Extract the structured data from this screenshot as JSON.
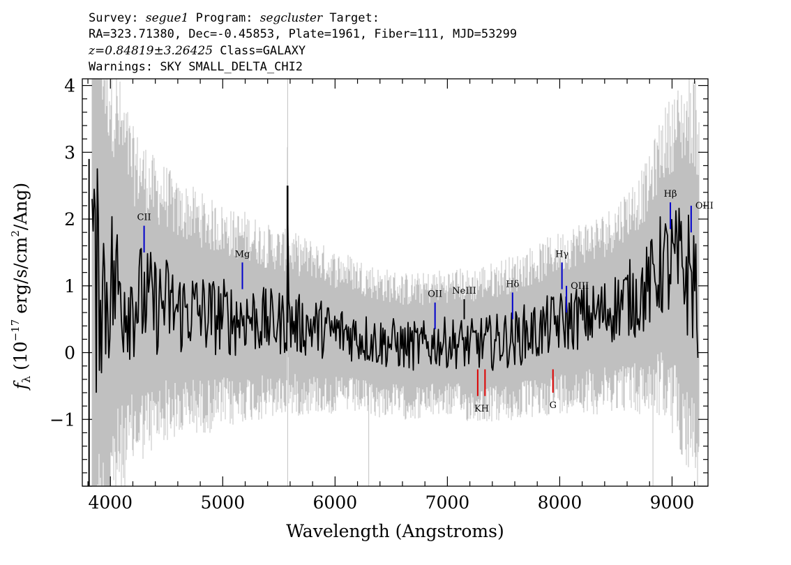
{
  "header": {
    "line1": {
      "survey_prefix": "Survey: ",
      "survey": "segue1",
      "program_prefix": " Program: ",
      "program": "segcluster",
      "target_suffix": " Target:"
    },
    "line2": "RA=323.71380, Dec=-0.45853, Plate=1961, Fiber=111, MJD=53299",
    "line3": {
      "z_value": "z=0.84819±3.26425",
      "class_text": " Class=GALAXY"
    },
    "line4": "Warnings: SKY SMALL_DELTA_CHI2"
  },
  "chart_data": {
    "type": "line",
    "title": "",
    "xlabel": "Wavelength (Angstroms)",
    "ylabel": "f_λ (10^-17 erg/s/cm²/Ang)",
    "xlim": [
      3750,
      9320
    ],
    "ylim": [
      -2.0,
      4.1
    ],
    "x_ticks": [
      4000,
      5000,
      6000,
      7000,
      8000,
      9000
    ],
    "y_ticks": [
      -1,
      0,
      1,
      2,
      3,
      4
    ],
    "series": [
      {
        "role": "flux",
        "color": "#000000",
        "points": [
          [
            3800,
            1.2
          ],
          [
            3830,
            2.5
          ],
          [
            3860,
            0.8
          ],
          [
            3900,
            1.3
          ],
          [
            3950,
            0.9
          ],
          [
            4000,
            1.1
          ],
          [
            4100,
            0.9
          ],
          [
            4200,
            0.8
          ],
          [
            4300,
            0.8
          ],
          [
            4400,
            0.7
          ],
          [
            4500,
            0.75
          ],
          [
            4600,
            0.6
          ],
          [
            4700,
            0.65
          ],
          [
            4800,
            0.6
          ],
          [
            4900,
            0.55
          ],
          [
            5000,
            0.55
          ],
          [
            5100,
            0.5
          ],
          [
            5200,
            0.55
          ],
          [
            5300,
            0.5
          ],
          [
            5400,
            0.45
          ],
          [
            5500,
            0.45
          ],
          [
            5570,
            0.45
          ],
          [
            5577,
            2.5
          ],
          [
            5585,
            0.45
          ],
          [
            5700,
            0.4
          ],
          [
            5800,
            0.4
          ],
          [
            5900,
            0.35
          ],
          [
            6000,
            0.3
          ],
          [
            6100,
            0.3
          ],
          [
            6200,
            0.25
          ],
          [
            6300,
            0.2
          ],
          [
            6400,
            0.15
          ],
          [
            6500,
            0.15
          ],
          [
            6600,
            0.1
          ],
          [
            6700,
            0.1
          ],
          [
            6800,
            0.1
          ],
          [
            6900,
            0.15
          ],
          [
            7000,
            0.15
          ],
          [
            7100,
            0.15
          ],
          [
            7200,
            0.1
          ],
          [
            7300,
            0.15
          ],
          [
            7400,
            0.15
          ],
          [
            7500,
            0.2
          ],
          [
            7600,
            0.2
          ],
          [
            7700,
            0.3
          ],
          [
            7800,
            0.3
          ],
          [
            7900,
            0.4
          ],
          [
            8000,
            0.45
          ],
          [
            8100,
            0.5
          ],
          [
            8200,
            0.55
          ],
          [
            8300,
            0.55
          ],
          [
            8400,
            0.6
          ],
          [
            8500,
            0.7
          ],
          [
            8600,
            0.8
          ],
          [
            8700,
            0.85
          ],
          [
            8800,
            1.0
          ],
          [
            8900,
            1.3
          ],
          [
            9000,
            1.3
          ],
          [
            9100,
            1.25
          ],
          [
            9200,
            1.1
          ],
          [
            9250,
            0.6
          ]
        ]
      },
      {
        "role": "error",
        "color": "#c0c0c0",
        "points": [
          [
            3800,
            4.5
          ],
          [
            4000,
            2.8
          ],
          [
            4200,
            2.0
          ],
          [
            4400,
            1.7
          ],
          [
            4600,
            1.5
          ],
          [
            5000,
            1.3
          ],
          [
            5500,
            1.1
          ],
          [
            6000,
            0.95
          ],
          [
            6500,
            0.85
          ],
          [
            7000,
            0.85
          ],
          [
            7500,
            0.95
          ],
          [
            8000,
            1.05
          ],
          [
            8500,
            1.2
          ],
          [
            8800,
            1.5
          ],
          [
            9000,
            2.0
          ],
          [
            9250,
            2.5
          ]
        ]
      }
    ],
    "spectral_lines": [
      {
        "name": "CII",
        "x": 4300,
        "y": 1.95,
        "color": "#0000cc",
        "ymin": 1.5,
        "ymax": 1.9,
        "label_pos": "above"
      },
      {
        "name": "Mg",
        "x": 5175,
        "y": 1.35,
        "color": "#0000cc",
        "ymin": 0.95,
        "ymax": 1.35,
        "label_pos": "above"
      },
      {
        "name": "OII",
        "x": 6890,
        "y": 0.85,
        "color": "#0000cc",
        "ymin": 0.35,
        "ymax": 0.75,
        "label_pos": "above"
      },
      {
        "name": "NeIII",
        "x": 7150,
        "y": 0.9,
        "color": "#000000",
        "ymin": 0.5,
        "ymax": 0.8,
        "label_pos": "above"
      },
      {
        "name": "Hδ",
        "x": 7580,
        "y": 1.0,
        "color": "#0000cc",
        "ymin": 0.5,
        "ymax": 0.9,
        "label_pos": "above"
      },
      {
        "name": "Hγ",
        "x": 8020,
        "y": 1.4,
        "color": "#0000cc",
        "ymin": 0.95,
        "ymax": 1.35,
        "label_pos": "above"
      },
      {
        "name": "OIII",
        "x": 8060,
        "y": 1.1,
        "color": "#0000cc",
        "ymin": 0.6,
        "ymax": 1.0,
        "label_pos": "right"
      },
      {
        "name": "Hβ",
        "x": 8985,
        "y": 2.3,
        "color": "#0000cc",
        "ymin": 1.85,
        "ymax": 2.25,
        "label_pos": "above"
      },
      {
        "name": "OIII",
        "x": 9170,
        "y": 2.1,
        "color": "#0000cc",
        "ymin": 1.8,
        "ymax": 2.2,
        "label_pos": "right"
      },
      {
        "name": "K",
        "x": 7270,
        "y": -0.7,
        "color": "#dd0000",
        "ymin": -0.65,
        "ymax": -0.25,
        "label_pos": "below"
      },
      {
        "name": "H",
        "x": 7335,
        "y": -0.7,
        "color": "#dd0000",
        "ymin": -0.65,
        "ymax": -0.25,
        "label_pos": "below"
      },
      {
        "name": "G",
        "x": 7940,
        "y": -0.65,
        "color": "#dd0000",
        "ymin": -0.6,
        "ymax": -0.25,
        "label_pos": "below"
      }
    ],
    "grid": false
  }
}
